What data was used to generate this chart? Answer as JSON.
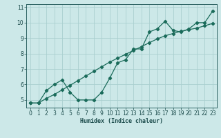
{
  "xlabel": "Humidex (Indice chaleur)",
  "background_color": "#cce8e8",
  "grid_color": "#aacfcf",
  "line_color": "#1a6b5a",
  "xlim": [
    -0.5,
    23.5
  ],
  "ylim": [
    4.5,
    11.2
  ],
  "yticks": [
    5,
    6,
    7,
    8,
    9,
    10,
    11
  ],
  "xticks": [
    0,
    1,
    2,
    3,
    4,
    5,
    6,
    7,
    8,
    9,
    10,
    11,
    12,
    13,
    14,
    15,
    16,
    17,
    18,
    19,
    20,
    21,
    22,
    23
  ],
  "line1_x": [
    0,
    1,
    2,
    3,
    4,
    5,
    6,
    7,
    8,
    9,
    10,
    11,
    12,
    13,
    14,
    15,
    16,
    17,
    18,
    19,
    20,
    21,
    22,
    23
  ],
  "line1_y": [
    4.8,
    4.8,
    5.6,
    6.0,
    6.3,
    5.5,
    5.0,
    5.0,
    5.0,
    5.5,
    6.4,
    7.4,
    7.6,
    8.3,
    8.3,
    9.4,
    9.6,
    10.1,
    9.5,
    9.4,
    9.6,
    10.0,
    10.0,
    10.75
  ],
  "line2_x": [
    0,
    1,
    2,
    3,
    4,
    5,
    6,
    7,
    8,
    9,
    10,
    11,
    12,
    13,
    14,
    15,
    16,
    17,
    18,
    19,
    20,
    21,
    22,
    23
  ],
  "line2_y": [
    4.8,
    4.8,
    5.1,
    5.35,
    5.65,
    5.95,
    6.25,
    6.55,
    6.85,
    7.15,
    7.45,
    7.7,
    7.95,
    8.2,
    8.45,
    8.7,
    8.95,
    9.15,
    9.3,
    9.45,
    9.55,
    9.65,
    9.8,
    9.95
  ]
}
